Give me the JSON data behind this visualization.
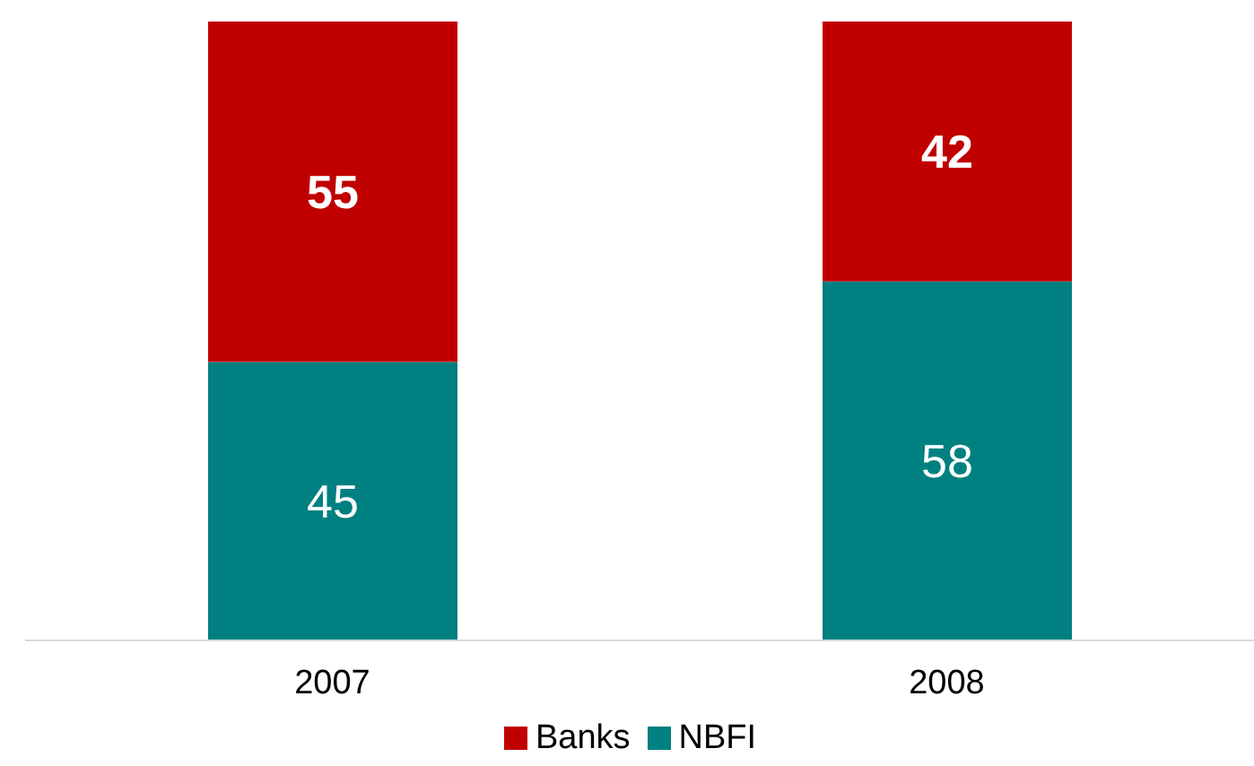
{
  "chart_data": {
    "type": "bar",
    "stacked": true,
    "categories": [
      "2007",
      "2008"
    ],
    "series": [
      {
        "name": "NBFI",
        "color": "#008080",
        "values": [
          45,
          58
        ]
      },
      {
        "name": "Banks",
        "color": "#c00000",
        "values": [
          55,
          42
        ]
      }
    ],
    "data_labels": true,
    "legend": "bottom",
    "grid": false
  }
}
